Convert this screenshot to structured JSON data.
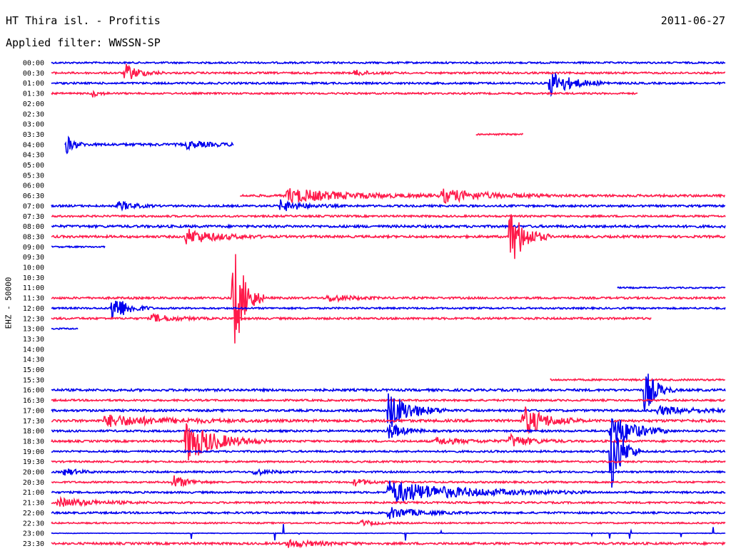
{
  "header": {
    "title": "HT Thira isl. - Profitis",
    "date": "2011-06-27",
    "filter": "Applied filter: WWSSN-SP"
  },
  "chart_data": {
    "type": "line",
    "subtype": "helicorder",
    "ylabel": "EHZ - 50000",
    "colors": {
      "blue": "#0000ee",
      "red": "#ff1a4a"
    },
    "time_labels": [
      "00:00",
      "00:30",
      "01:00",
      "01:30",
      "02:00",
      "02:30",
      "03:00",
      "03:30",
      "04:00",
      "04:30",
      "05:00",
      "05:30",
      "06:00",
      "06:30",
      "07:00",
      "07:30",
      "08:00",
      "08:30",
      "09:00",
      "09:30",
      "10:00",
      "10:30",
      "11:00",
      "11:30",
      "12:00",
      "12:30",
      "13:00",
      "13:30",
      "14:00",
      "14:30",
      "15:00",
      "15:30",
      "16:00",
      "16:30",
      "17:00",
      "17:30",
      "18:00",
      "18:30",
      "19:00",
      "19:30",
      "20:00",
      "20:30",
      "21:00",
      "21:30",
      "22:00",
      "22:30",
      "23:00",
      "23:30"
    ],
    "trace_row_minutes": 30,
    "traces": [
      {
        "row": 0,
        "color": "blue",
        "start": 0,
        "end": 1,
        "noise": 1.2
      },
      {
        "row": 1,
        "color": "red",
        "start": 0,
        "end": 1,
        "noise": 1.3,
        "events": [
          {
            "t": 0.11,
            "amp": 12,
            "dur": 0.02
          },
          {
            "t": 0.45,
            "amp": 4,
            "dur": 0.02
          }
        ]
      },
      {
        "row": 2,
        "color": "blue",
        "start": 0,
        "end": 1,
        "noise": 1.3,
        "events": [
          {
            "t": 0.74,
            "amp": 18,
            "dur": 0.03
          }
        ]
      },
      {
        "row": 3,
        "color": "red",
        "start": 0,
        "end": 0.87,
        "noise": 1.2,
        "events": [
          {
            "t": 0.06,
            "amp": 5,
            "dur": 0.01
          }
        ]
      },
      {
        "row": 7,
        "color": "red",
        "start": 0.63,
        "end": 0.7,
        "noise": 1.0
      },
      {
        "row": 8,
        "color": "blue",
        "start": 0.02,
        "end": 0.27,
        "noise": 1.8,
        "events": [
          {
            "t": 0.02,
            "amp": 16,
            "dur": 0.01
          },
          {
            "t": 0.2,
            "amp": 5,
            "dur": 0.03
          }
        ]
      },
      {
        "row": 13,
        "color": "red",
        "start": 0.28,
        "end": 1,
        "noise": 1.6,
        "events": [
          {
            "t": 0.35,
            "amp": 10,
            "dur": 0.08
          },
          {
            "t": 0.58,
            "amp": 9,
            "dur": 0.06
          }
        ]
      },
      {
        "row": 14,
        "color": "blue",
        "start": 0,
        "end": 1,
        "noise": 1.4,
        "events": [
          {
            "t": 0.1,
            "amp": 7,
            "dur": 0.02
          },
          {
            "t": 0.34,
            "amp": 8,
            "dur": 0.03
          }
        ]
      },
      {
        "row": 15,
        "color": "red",
        "start": 0,
        "end": 1,
        "noise": 1.3
      },
      {
        "row": 16,
        "color": "blue",
        "start": 0,
        "end": 1,
        "noise": 1.7
      },
      {
        "row": 17,
        "color": "red",
        "start": 0,
        "end": 1,
        "noise": 1.6,
        "events": [
          {
            "t": 0.2,
            "amp": 11,
            "dur": 0.04
          },
          {
            "t": 0.68,
            "amp": 45,
            "dur": 0.02
          }
        ]
      },
      {
        "row": 18,
        "color": "blue",
        "start": 0,
        "end": 0.08,
        "noise": 1.0
      },
      {
        "row": 22,
        "color": "blue",
        "start": 0.84,
        "end": 1,
        "noise": 1.0
      },
      {
        "row": 23,
        "color": "red",
        "start": 0,
        "end": 1,
        "noise": 1.4,
        "events": [
          {
            "t": 0.27,
            "amp": 85,
            "dur": 0.015
          },
          {
            "t": 0.41,
            "amp": 5,
            "dur": 0.03
          }
        ]
      },
      {
        "row": 24,
        "color": "blue",
        "start": 0,
        "end": 1,
        "noise": 1.2,
        "events": [
          {
            "t": 0.09,
            "amp": 22,
            "dur": 0.02
          }
        ]
      },
      {
        "row": 25,
        "color": "red",
        "start": 0,
        "end": 0.89,
        "noise": 1.4,
        "events": [
          {
            "t": 0.15,
            "amp": 6,
            "dur": 0.03
          }
        ]
      },
      {
        "row": 26,
        "color": "blue",
        "start": 0,
        "end": 0.04,
        "noise": 1.0
      },
      {
        "row": 31,
        "color": "red",
        "start": 0.74,
        "end": 1,
        "noise": 1.2
      },
      {
        "row": 32,
        "color": "blue",
        "start": 0,
        "end": 1,
        "noise": 1.6,
        "events": [
          {
            "t": 0.88,
            "amp": 35,
            "dur": 0.015
          }
        ]
      },
      {
        "row": 33,
        "color": "red",
        "start": 0,
        "end": 1,
        "noise": 1.3
      },
      {
        "row": 34,
        "color": "blue",
        "start": 0,
        "end": 1,
        "noise": 1.5,
        "events": [
          {
            "t": 0.5,
            "amp": 28,
            "dur": 0.03
          },
          {
            "t": 0.9,
            "amp": 6,
            "dur": 0.05
          }
        ]
      },
      {
        "row": 35,
        "color": "red",
        "start": 0,
        "end": 1,
        "noise": 1.8,
        "events": [
          {
            "t": 0.08,
            "amp": 8,
            "dur": 0.08
          },
          {
            "t": 0.7,
            "amp": 22,
            "dur": 0.03
          }
        ]
      },
      {
        "row": 36,
        "color": "blue",
        "start": 0,
        "end": 1,
        "noise": 1.4,
        "events": [
          {
            "t": 0.5,
            "amp": 12,
            "dur": 0.02
          },
          {
            "t": 0.83,
            "amp": 28,
            "dur": 0.03
          }
        ]
      },
      {
        "row": 37,
        "color": "red",
        "start": 0,
        "end": 1,
        "noise": 1.4,
        "events": [
          {
            "t": 0.2,
            "amp": 30,
            "dur": 0.04
          },
          {
            "t": 0.57,
            "amp": 5,
            "dur": 0.04
          },
          {
            "t": 0.68,
            "amp": 9,
            "dur": 0.03
          }
        ]
      },
      {
        "row": 38,
        "color": "blue",
        "start": 0,
        "end": 1,
        "noise": 1.3,
        "events": [
          {
            "t": 0.83,
            "amp": 60,
            "dur": 0.015
          }
        ]
      },
      {
        "row": 39,
        "color": "red",
        "start": 0,
        "end": 1,
        "noise": 1.2
      },
      {
        "row": 40,
        "color": "blue",
        "start": 0,
        "end": 1,
        "noise": 1.2,
        "events": [
          {
            "t": 0.02,
            "amp": 5,
            "dur": 0.02
          },
          {
            "t": 0.3,
            "amp": 5,
            "dur": 0.02
          }
        ]
      },
      {
        "row": 41,
        "color": "red",
        "start": 0,
        "end": 1,
        "noise": 1.2,
        "events": [
          {
            "t": 0.18,
            "amp": 10,
            "dur": 0.02
          },
          {
            "t": 0.45,
            "amp": 5,
            "dur": 0.02
          }
        ]
      },
      {
        "row": 42,
        "color": "blue",
        "start": 0,
        "end": 1,
        "noise": 1.3,
        "events": [
          {
            "t": 0.5,
            "amp": 16,
            "dur": 0.1
          }
        ]
      },
      {
        "row": 43,
        "color": "red",
        "start": 0,
        "end": 1,
        "noise": 1.3,
        "events": [
          {
            "t": 0.01,
            "amp": 6,
            "dur": 0.05
          }
        ]
      },
      {
        "row": 44,
        "color": "blue",
        "start": 0,
        "end": 1,
        "noise": 1.3,
        "events": [
          {
            "t": 0.5,
            "amp": 8,
            "dur": 0.04
          }
        ]
      },
      {
        "row": 45,
        "color": "red",
        "start": 0,
        "end": 1,
        "noise": 1.0,
        "events": [
          {
            "t": 0.46,
            "amp": 4,
            "dur": 0.02
          }
        ]
      },
      {
        "row": 46,
        "color": "blue",
        "start": 0,
        "end": 1,
        "noise": 0.4,
        "spikes": true
      },
      {
        "row": 47,
        "color": "red",
        "start": 0,
        "end": 1,
        "noise": 1.5,
        "events": [
          {
            "t": 0.35,
            "amp": 5,
            "dur": 0.04
          }
        ]
      }
    ]
  }
}
